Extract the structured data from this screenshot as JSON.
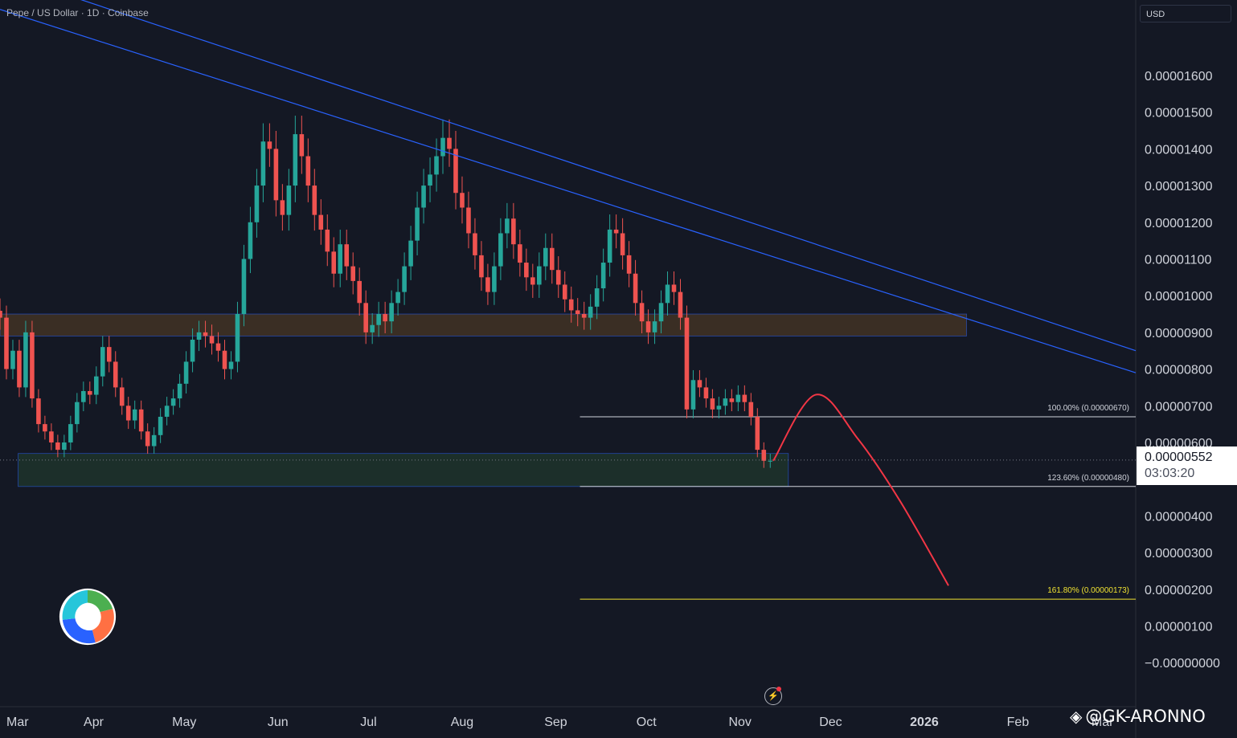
{
  "header": {
    "title": "Pepe / US Dollar · 1D · Coinbase"
  },
  "price_axis": {
    "currency": "USD",
    "current_price": "0.00000552",
    "countdown": "03:03:20"
  },
  "watermark": {
    "icon": "binance-square-icon",
    "text": "@GK-ARONNO"
  },
  "colors": {
    "background": "#141824",
    "up": "#26a69a",
    "down": "#ef5350",
    "trendline": "#2962ff",
    "resistance_zone": "#3a2e24",
    "support_zone": "#1c2f2a",
    "fib_white": "#d1d4dc",
    "fib_yellow": "#f0e232",
    "projection": "#f23645"
  },
  "chart_data": {
    "type": "candlestick",
    "title": "Pepe / US Dollar · 1D · Coinbase",
    "x_axis": {
      "labels": [
        "Mar",
        "Apr",
        "May",
        "Jun",
        "Jul",
        "Aug",
        "Sep",
        "Oct",
        "Nov",
        "Dec",
        "2026",
        "Feb",
        "Mar"
      ],
      "dates": [
        "2025-03-01",
        "2025-04-01",
        "2025-05-01",
        "2025-06-01",
        "2025-07-01",
        "2025-08-01",
        "2025-09-01",
        "2025-10-01",
        "2025-11-01",
        "2025-12-01",
        "2026-01-01",
        "2026-02-01",
        "2026-03-01"
      ],
      "range": [
        "2025-03-01",
        "2026-03-12"
      ]
    },
    "y_axis": {
      "ticks": [
        "0.00001600",
        "0.00001500",
        "0.00001400",
        "0.00001300",
        "0.00001200",
        "0.00001100",
        "0.00001000",
        "0.00000900",
        "0.00000800",
        "0.00000700",
        "0.00000600",
        "0.00000400",
        "0.00000300",
        "0.00000200",
        "0.00000100",
        "−0.00000000"
      ],
      "tick_values": [
        1.6e-05,
        1.5e-05,
        1.4e-05,
        1.3e-05,
        1.2e-05,
        1.1e-05,
        1e-05,
        9e-06,
        8e-06,
        7e-06,
        6e-06,
        4e-06,
        3e-06,
        2e-06,
        1e-06,
        0
      ],
      "range": [
        -1.2e-06,
        1.74e-05
      ]
    },
    "candles_close": [
      9.4e-06,
      8e-06,
      8.5e-06,
      7.5e-06,
      9e-06,
      7.2e-06,
      6.5e-06,
      6.3e-06,
      6e-06,
      5.8e-06,
      6e-06,
      6.5e-06,
      7.1e-06,
      7.4e-06,
      7.3e-06,
      7.8e-06,
      8.6e-06,
      8.2e-06,
      7.5e-06,
      7e-06,
      6.6e-06,
      6.9e-06,
      6.3e-06,
      5.9e-06,
      6.2e-06,
      6.7e-06,
      7e-06,
      7.2e-06,
      7.6e-06,
      8.2e-06,
      8.8e-06,
      9e-06,
      8.9e-06,
      8.7e-06,
      8.5e-06,
      8e-06,
      8.2e-06,
      9.5e-06,
      1.1e-05,
      1.2e-05,
      1.3e-05,
      1.42e-05,
      1.4e-05,
      1.26e-05,
      1.22e-05,
      1.3e-05,
      1.44e-05,
      1.38e-05,
      1.3e-05,
      1.22e-05,
      1.18e-05,
      1.12e-05,
      1.06e-05,
      1.14e-05,
      1.08e-05,
      1.04e-05,
      9.8e-06,
      9e-06,
      9.2e-06,
      9.5e-06,
      9.3e-06,
      9.8e-06,
      1.01e-05,
      1.08e-05,
      1.15e-05,
      1.24e-05,
      1.3e-05,
      1.33e-05,
      1.38e-05,
      1.43e-05,
      1.4e-05,
      1.28e-05,
      1.24e-05,
      1.17e-05,
      1.11e-05,
      1.05e-05,
      1.01e-05,
      1.08e-05,
      1.17e-05,
      1.21e-05,
      1.14e-05,
      1.09e-05,
      1.05e-05,
      1.03e-05,
      1.08e-05,
      1.13e-05,
      1.07e-05,
      1.03e-05,
      9.9e-06,
      9.6e-06,
      9.5e-06,
      9.4e-06,
      9.7e-06,
      1.02e-05,
      1.09e-05,
      1.18e-05,
      1.17e-05,
      1.11e-05,
      1.06e-05,
      9.8e-06,
      9.3e-06,
      9e-06,
      9.3e-06,
      9.8e-06,
      1.03e-05,
      1.01e-05,
      9.4e-06,
      6.9e-06,
      7.7e-06,
      7.5e-06,
      7.2e-06,
      6.9e-06,
      7e-06,
      7.2e-06,
      7.1e-06,
      7.3e-06,
      7.1e-06,
      6.7e-06,
      5.8e-06,
      5.5e-06,
      5.5e-06
    ],
    "candles_start": "2025-03-01",
    "candles_end": "2025-11-11",
    "last_price": 5.52e-06,
    "trendlines": [
      {
        "points": [
          [
            "2025-03-01",
            1.88e-05
          ],
          [
            "2026-03-12",
            8.5e-06
          ]
        ]
      },
      {
        "points": [
          [
            "2025-03-01",
            1.78e-05
          ],
          [
            "2026-03-12",
            7.9e-06
          ]
        ]
      }
    ],
    "zones": [
      {
        "type": "resistance",
        "x": [
          "2025-03-01",
          "2026-01-15"
        ],
        "y": [
          8.9e-06,
          9.5e-06
        ]
      },
      {
        "type": "support",
        "x": [
          "2025-03-07",
          "2025-11-17"
        ],
        "y": [
          4.8e-06,
          5.7e-06
        ]
      }
    ],
    "fibonacci": [
      {
        "label": "100.00% (0.00000670)",
        "value": 6.7e-06,
        "from": "2025-09-09"
      },
      {
        "label": "123.60% (0.00000480)",
        "value": 4.8e-06,
        "from": "2025-09-09"
      },
      {
        "label": "161.80% (0.00000173)",
        "value": 1.73e-06,
        "from": "2025-09-09"
      }
    ],
    "projection": {
      "type": "curve",
      "points": [
        [
          "2025-11-12",
          5.5e-06
        ],
        [
          "2025-11-26",
          7.3e-06
        ],
        [
          "2025-12-10",
          6.1e-06
        ],
        [
          "2025-12-24",
          4.4e-06
        ],
        [
          "2026-01-09",
          2.1e-06
        ]
      ]
    },
    "grid": false
  }
}
